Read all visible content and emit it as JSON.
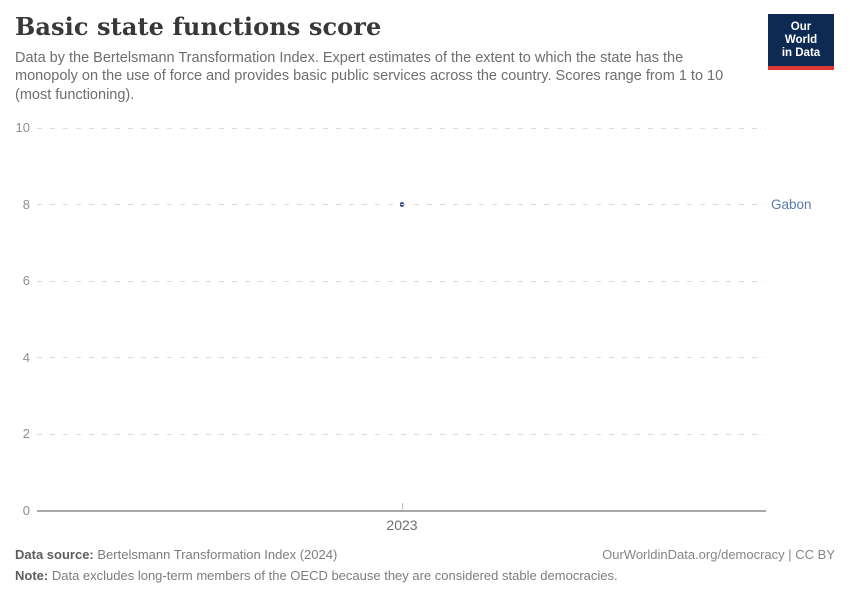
{
  "header": {
    "title": "Basic state functions score",
    "subtitle_lines": [
      "Data by the Bertelsmann Transformation Index. Expert estimates of the extent to which the state has the",
      "monopoly on the use of force and provides basic public services across the country. Scores range from 1 to 10",
      "(most functioning)."
    ]
  },
  "logo": {
    "line1": "Our World",
    "line2": "in Data",
    "bg_color": "#0e2a52",
    "accent_color": "#dc3a32"
  },
  "chart_data": {
    "type": "scatter",
    "title": "Basic state functions score",
    "x": [
      2023
    ],
    "xtick_labels": [
      "2023"
    ],
    "series": [
      {
        "name": "Gabon",
        "values": [
          8
        ],
        "color": "#3c548e",
        "label_color": "#5b79a7"
      }
    ],
    "yticks": [
      0,
      2,
      4,
      6,
      8,
      10
    ],
    "ylim": [
      0,
      10
    ],
    "grid": "horizontal-dashed",
    "legend_position": "entity-label-right"
  },
  "footer": {
    "source_label": "Data source:",
    "source_text": "Bertelsmann Transformation Index (2024)",
    "link_text": "OurWorldinData.org/democracy | CC BY",
    "note_label": "Note:",
    "note_text": "Data excludes long-term members of the OECD because they are considered stable democracies."
  }
}
